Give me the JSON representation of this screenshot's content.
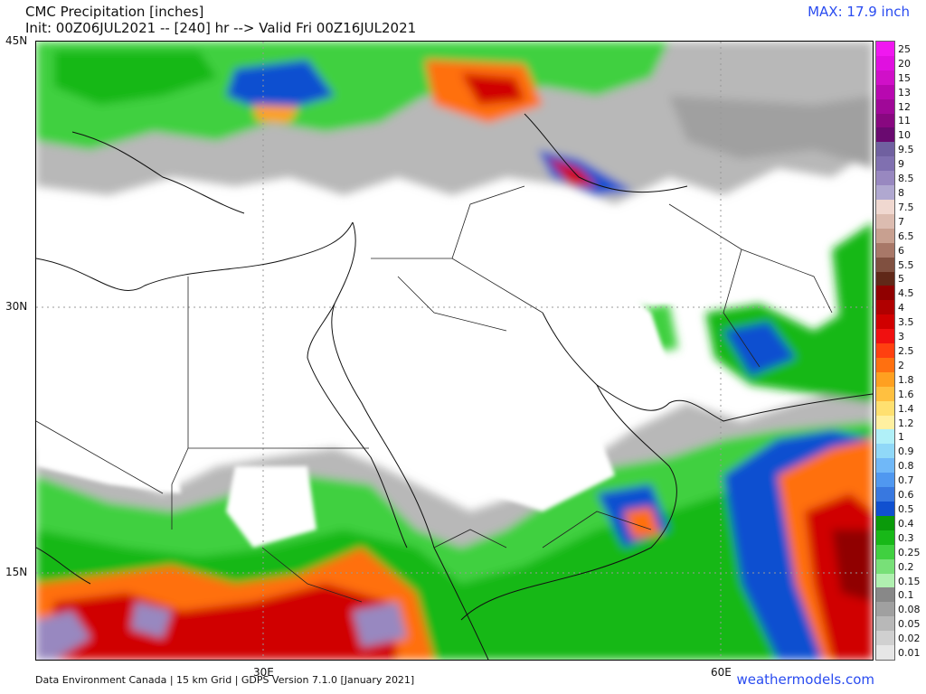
{
  "header": {
    "title": "CMC Precipitation [inches]",
    "subtitle": "Init: 00Z06JUL2021 -- [240] hr --> Valid Fri 00Z16JUL2021",
    "max_text": "MAX: 17.9 inch"
  },
  "lat_labels": [
    "45N",
    "30N",
    "15N"
  ],
  "lon_labels": [
    "30E",
    "60E"
  ],
  "footer": {
    "credits": "Data Environment Canada | 15 km Grid | GDPS Version 7.1.0 [January 2021]",
    "brand": "weathermodels.com"
  },
  "legend": [
    {
      "label": "25",
      "color": "#f018f0"
    },
    {
      "label": "20",
      "color": "#e010e0"
    },
    {
      "label": "15",
      "color": "#d010c8"
    },
    {
      "label": "13",
      "color": "#b808b0"
    },
    {
      "label": "12",
      "color": "#a00898"
    },
    {
      "label": "11",
      "color": "#880880"
    },
    {
      "label": "10",
      "color": "#6a0a70"
    },
    {
      "label": "9.5",
      "color": "#7060a0"
    },
    {
      "label": "9",
      "color": "#8070b0"
    },
    {
      "label": "8.5",
      "color": "#9888c0"
    },
    {
      "label": "8",
      "color": "#b0a8d0"
    },
    {
      "label": "7.5",
      "color": "#f0d8d0"
    },
    {
      "label": "7",
      "color": "#dcbcb0"
    },
    {
      "label": "6.5",
      "color": "#c8a090"
    },
    {
      "label": "6",
      "color": "#a87868"
    },
    {
      "label": "5.5",
      "color": "#805040"
    },
    {
      "label": "5",
      "color": "#602818"
    },
    {
      "label": "4.5",
      "color": "#900000"
    },
    {
      "label": "4",
      "color": "#b00000"
    },
    {
      "label": "3.5",
      "color": "#d00000"
    },
    {
      "label": "3",
      "color": "#f01010"
    },
    {
      "label": "2.5",
      "color": "#ff4010"
    },
    {
      "label": "2",
      "color": "#ff7010"
    },
    {
      "label": "1.8",
      "color": "#ffa020"
    },
    {
      "label": "1.6",
      "color": "#ffc040"
    },
    {
      "label": "1.4",
      "color": "#ffe070"
    },
    {
      "label": "1.2",
      "color": "#fff0a0"
    },
    {
      "label": "1",
      "color": "#b0f0f8"
    },
    {
      "label": "0.9",
      "color": "#90d8f8"
    },
    {
      "label": "0.8",
      "color": "#70b8f8"
    },
    {
      "label": "0.7",
      "color": "#5098f0"
    },
    {
      "label": "0.6",
      "color": "#3878e0"
    },
    {
      "label": "0.5",
      "color": "#1050d0"
    },
    {
      "label": "0.4",
      "color": "#0a9a0a"
    },
    {
      "label": "0.3",
      "color": "#18b818"
    },
    {
      "label": "0.25",
      "color": "#40d040"
    },
    {
      "label": "0.2",
      "color": "#78e078"
    },
    {
      "label": "0.15",
      "color": "#b0f0b0"
    },
    {
      "label": "0.1",
      "color": "#888888"
    },
    {
      "label": "0.08",
      "color": "#a0a0a0"
    },
    {
      "label": "0.05",
      "color": "#b8b8b8"
    },
    {
      "label": "0.02",
      "color": "#d0d0d0"
    },
    {
      "label": "0.01",
      "color": "#e6e6e6"
    }
  ]
}
